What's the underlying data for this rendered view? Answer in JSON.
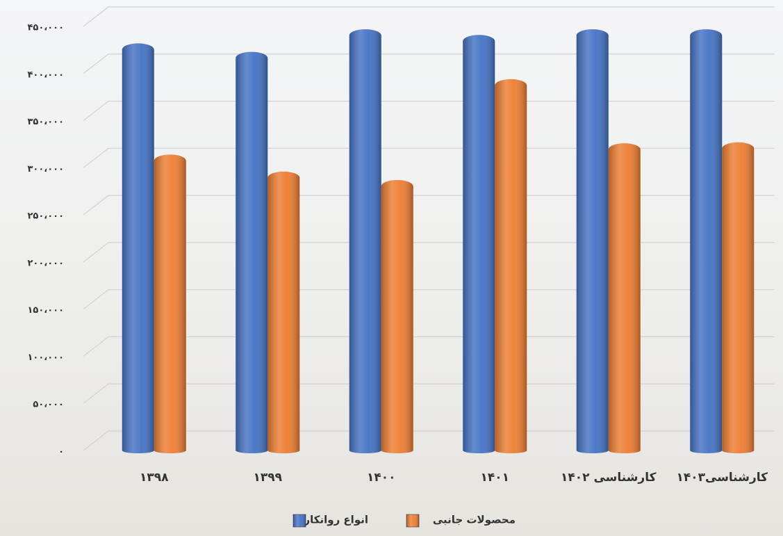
{
  "chart_data": {
    "type": "bar",
    "categories": [
      "۱۳۹۸",
      "۱۳۹۹",
      "۱۴۰۰",
      "۱۴۰۱",
      "کارشناسی ۱۴۰۲",
      "کارشناسی۱۴۰۳"
    ],
    "series": [
      {
        "name": "انواع روانکار",
        "color": "#4472c4",
        "values": [
          432000,
          423000,
          447000,
          441000,
          447000,
          447000
        ]
      },
      {
        "name": "محصولات جانبی",
        "color": "#ed7d31",
        "values": [
          314000,
          296000,
          287000,
          394000,
          326000,
          327000
        ]
      }
    ],
    "ylim": [
      0,
      450000
    ],
    "yticks": [
      {
        "value": 0,
        "label": "۰"
      },
      {
        "value": 50000,
        "label": "۵۰،۰۰۰"
      },
      {
        "value": 100000,
        "label": "۱۰۰،۰۰۰"
      },
      {
        "value": 150000,
        "label": "۱۵۰،۰۰۰"
      },
      {
        "value": 200000,
        "label": "۲۰۰،۰۰۰"
      },
      {
        "value": 250000,
        "label": "۲۵۰،۰۰۰"
      },
      {
        "value": 300000,
        "label": "۳۰۰،۰۰۰"
      },
      {
        "value": 350000,
        "label": "۳۵۰،۰۰۰"
      },
      {
        "value": 400000,
        "label": "۴۰۰،۰۰۰"
      },
      {
        "value": 450000,
        "label": "۴۵۰،۰۰۰"
      }
    ],
    "grid": true
  }
}
